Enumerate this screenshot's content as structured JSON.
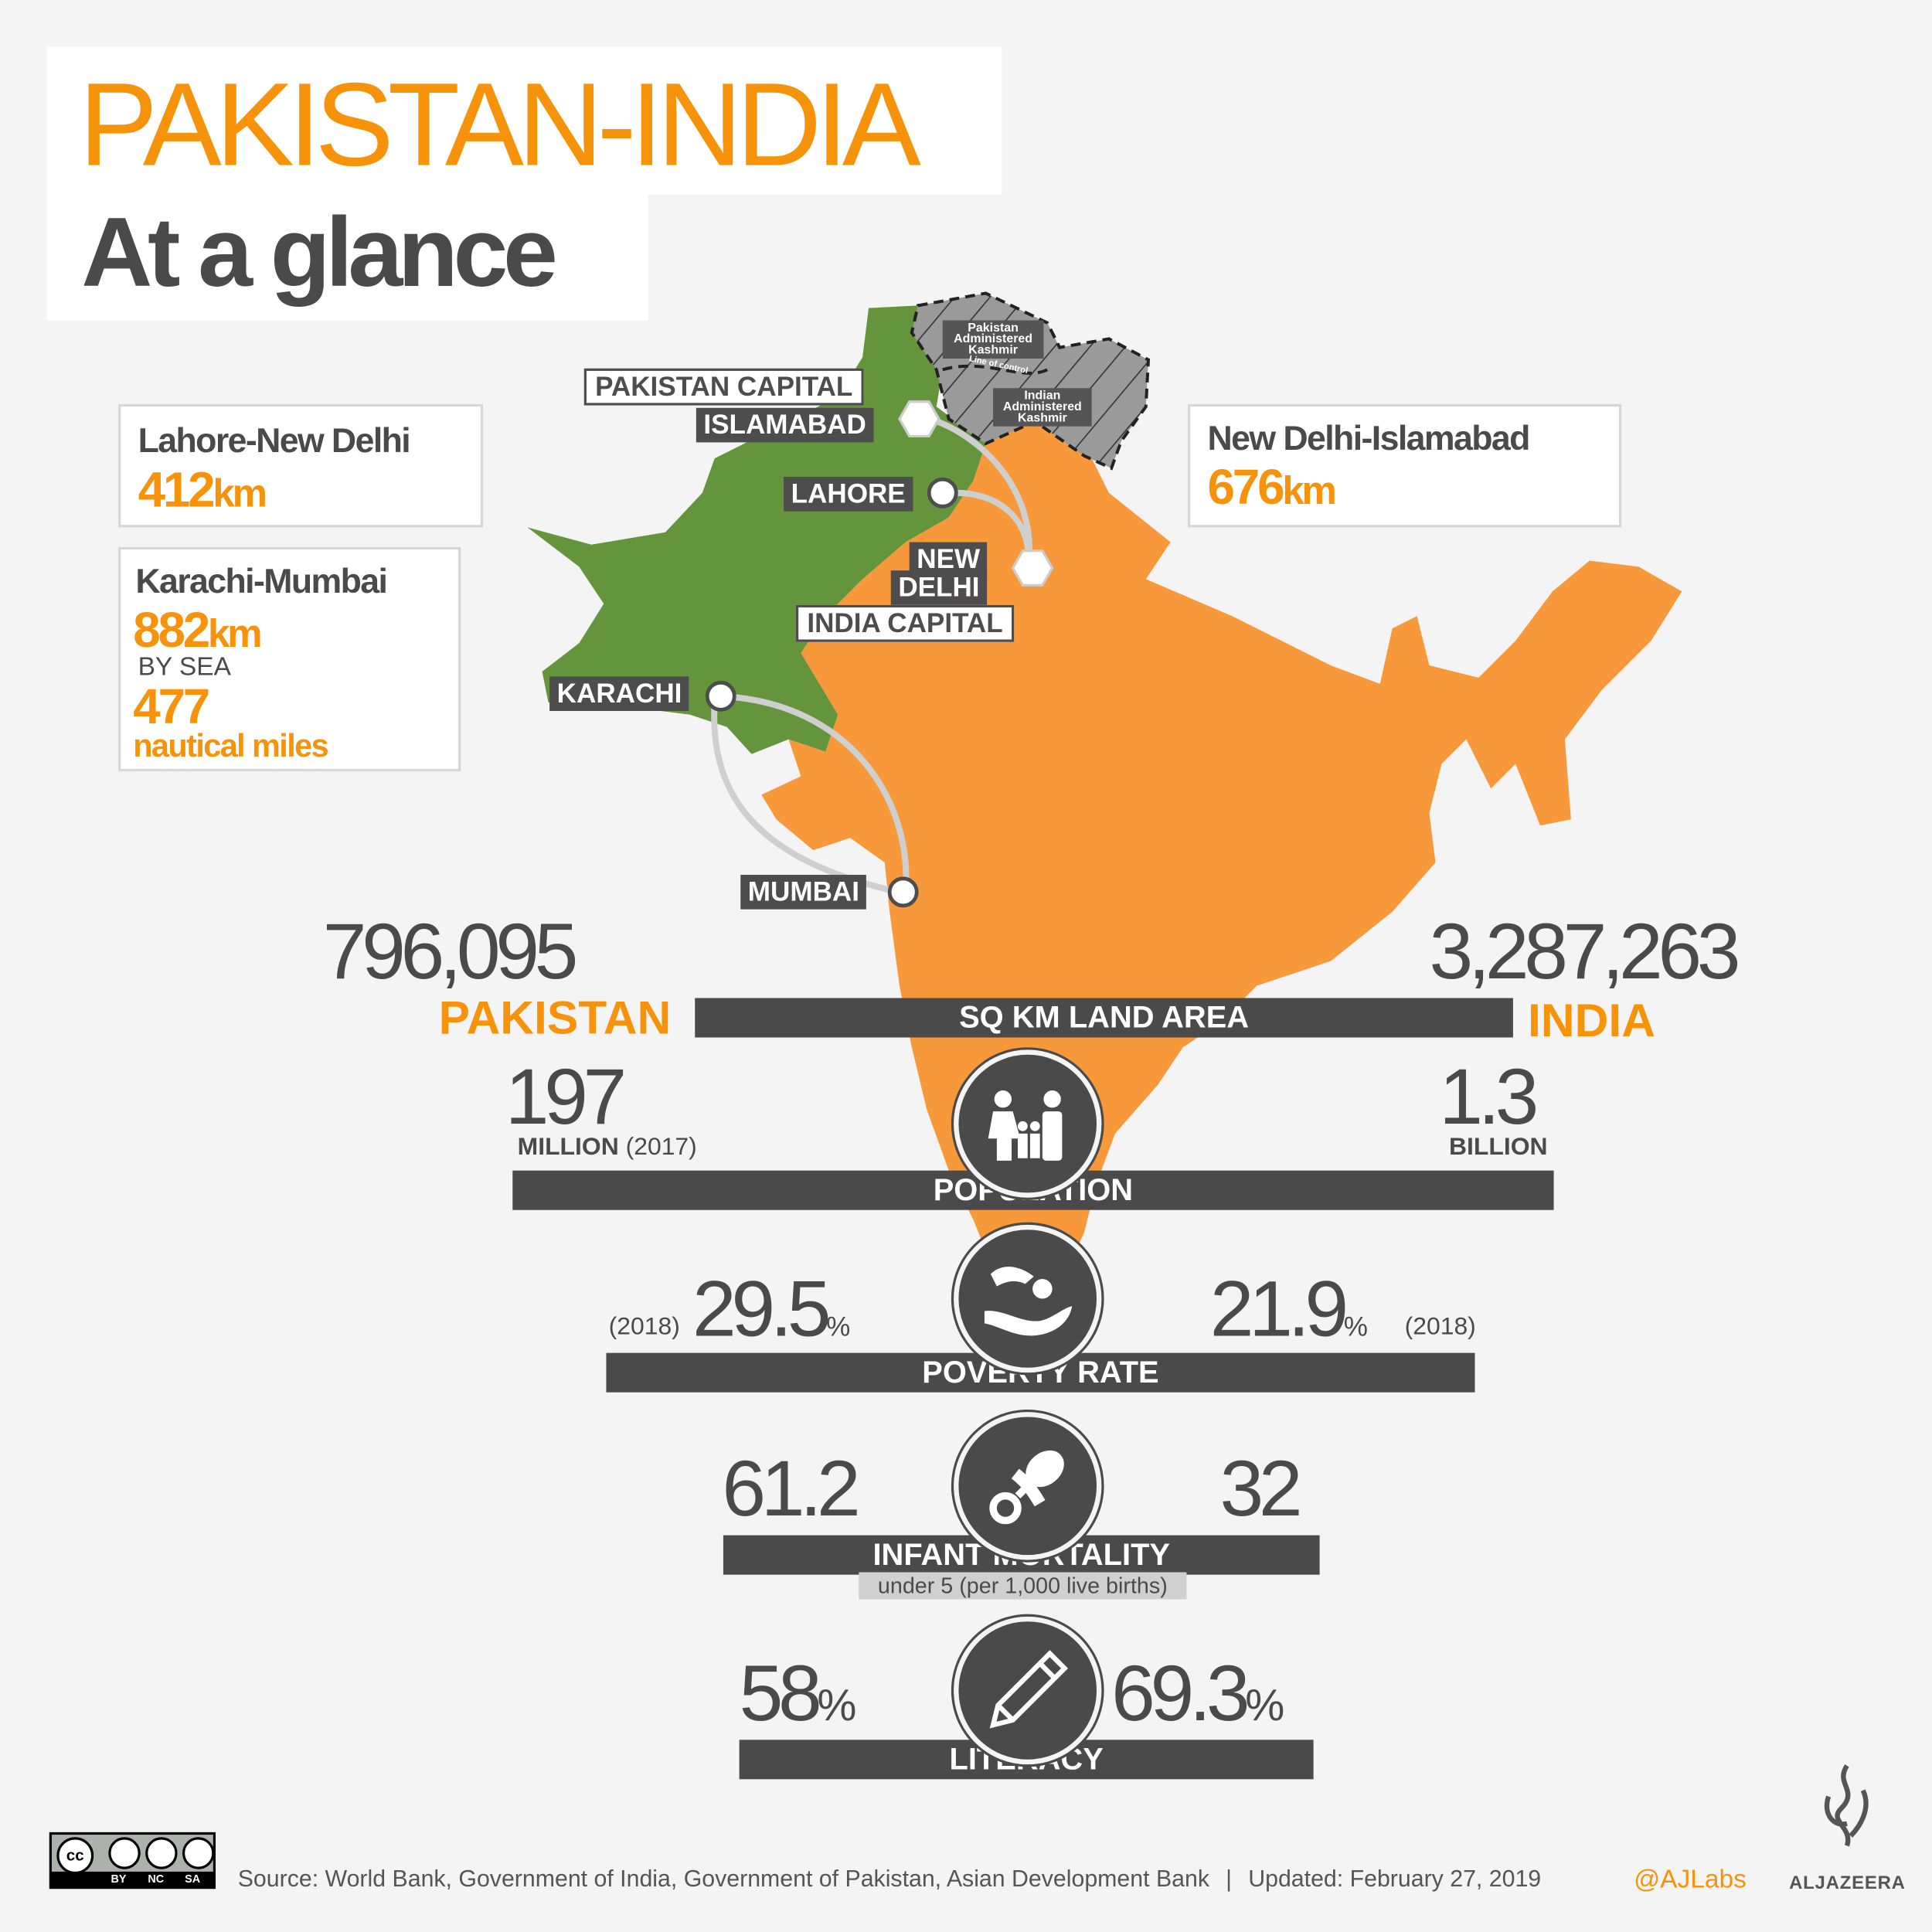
{
  "title": {
    "line1": "PAKISTAN-INDIA",
    "line2": "At a glance"
  },
  "colors": {
    "pakistan": "#64943c",
    "india": "#f7993b",
    "accent": "#f7930a",
    "dark": "#4a4a4a",
    "kashmir": "#9a9a9a"
  },
  "map": {
    "kashmir_pak": "Pakistan Administered Kashmir",
    "kashmir_ind": "Indian Administered Kashmir",
    "loc": "Line of control",
    "pak_capital_label": "PAKISTAN CAPITAL",
    "islamabad": "ISLAMABAD",
    "lahore": "LAHORE",
    "new_delhi_1": "NEW",
    "new_delhi_2": "DELHI",
    "india_capital_label": "INDIA CAPITAL",
    "karachi": "KARACHI",
    "mumbai": "MUMBAI"
  },
  "distances": {
    "lahore_delhi": {
      "label": "Lahore-New Delhi",
      "value": "412",
      "unit": "km"
    },
    "karachi_mumbai": {
      "label": "Karachi-Mumbai",
      "value": "882",
      "unit": "km",
      "by_sea": "BY SEA",
      "sea_value": "477",
      "sea_unit": "nautical miles"
    },
    "delhi_islamabad": {
      "label": "New Delhi-Islamabad",
      "value": "676",
      "unit": "km"
    }
  },
  "stats": {
    "country_left": "PAKISTAN",
    "country_right": "INDIA",
    "land": {
      "label": "SQ KM LAND AREA",
      "pakistan": "796,095",
      "india": "3,287,263"
    },
    "population": {
      "label": "POPULATION",
      "pakistan": "197",
      "pakistan_unit": "MILLION",
      "pakistan_year": "(2017)",
      "india": "1.3",
      "india_unit": "BILLION",
      "icon": "family-icon"
    },
    "poverty": {
      "label": "POVERTY RATE",
      "pakistan": "29.5",
      "india": "21.9",
      "unit": "%",
      "year": "(2018)",
      "icon": "hand-coin-icon"
    },
    "infant": {
      "label": "INFANT MORTALITY",
      "sub": "under 5 (per 1,000 live births)",
      "pakistan": "61.2",
      "india": "32",
      "icon": "pacifier-icon"
    },
    "literacy": {
      "label": "LITERACY",
      "pakistan": "58",
      "india": "69.3",
      "unit": "%",
      "icon": "pencil-icon"
    }
  },
  "footer": {
    "license": [
      "BY",
      "NC",
      "SA"
    ],
    "source": "Source: World Bank, Government of India, Government of Pakistan, Asian Development Bank",
    "separator": "|",
    "updated": "Updated: February 27, 2019",
    "handle": "@AJLabs",
    "brand": "ALJAZEERA"
  }
}
